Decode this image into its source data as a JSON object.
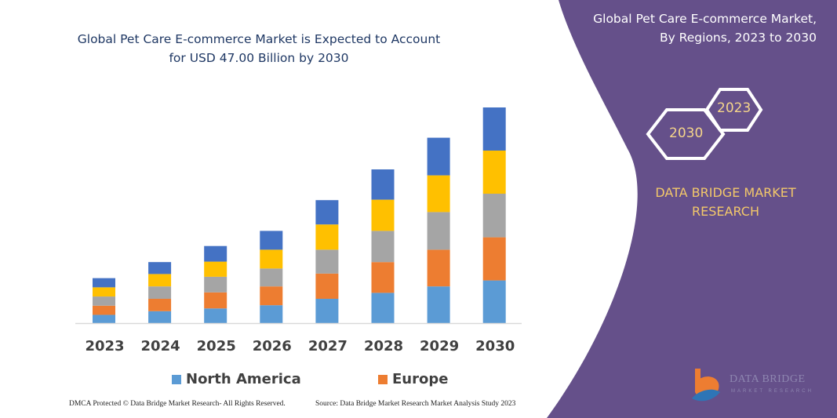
{
  "chart_data": {
    "type": "bar",
    "stacked": true,
    "title": "Global Pet Care E-commerce Market is Expected to Account for USD 47.00 Billion by 2030",
    "categories": [
      "2023",
      "2024",
      "2025",
      "2026",
      "2027",
      "2028",
      "2029",
      "2030"
    ],
    "series": [
      {
        "name": "North America",
        "color": "#5b9bd5",
        "values": [
          1.8,
          2.6,
          3.2,
          3.9,
          5.3,
          6.6,
          8.0,
          9.3
        ]
      },
      {
        "name": "Europe",
        "color": "#ed7d31",
        "values": [
          2.0,
          2.7,
          3.5,
          4.1,
          5.5,
          6.7,
          8.0,
          9.4
        ]
      },
      {
        "color": "#a5a5a5",
        "values": [
          2.0,
          2.7,
          3.4,
          3.9,
          5.2,
          6.8,
          8.2,
          9.5
        ]
      },
      {
        "color": "#ffc000",
        "values": [
          2.0,
          2.7,
          3.3,
          4.1,
          5.5,
          6.8,
          8.0,
          9.4
        ]
      },
      {
        "color": "#4472c4",
        "values": [
          2.0,
          2.6,
          3.4,
          4.1,
          5.3,
          6.6,
          8.2,
          9.4
        ]
      }
    ],
    "ylim": [
      0,
      47
    ],
    "grid": false,
    "legend_placement": "bottom",
    "xlabel": "",
    "ylabel": ""
  },
  "legend": [
    "North America",
    "Europe"
  ],
  "panel": {
    "title_line1": "Global Pet Care E-commerce Market,",
    "title_line2": "By Regions, 2023 to 2030",
    "hex_2023": "2023",
    "hex_2030": "2030",
    "brand_line1": "DATA BRIDGE MARKET",
    "brand_line2": "RESEARCH",
    "color": "#65508a",
    "logo_text": "DATA BRIDGE",
    "logo_sub": "MARKET RESEARCH"
  },
  "footer": {
    "copyright": "DMCA Protected © Data Bridge Market Research- All Rights Reserved.",
    "source": "Source: Data Bridge Market Research  Market Analysis Study 2023"
  }
}
